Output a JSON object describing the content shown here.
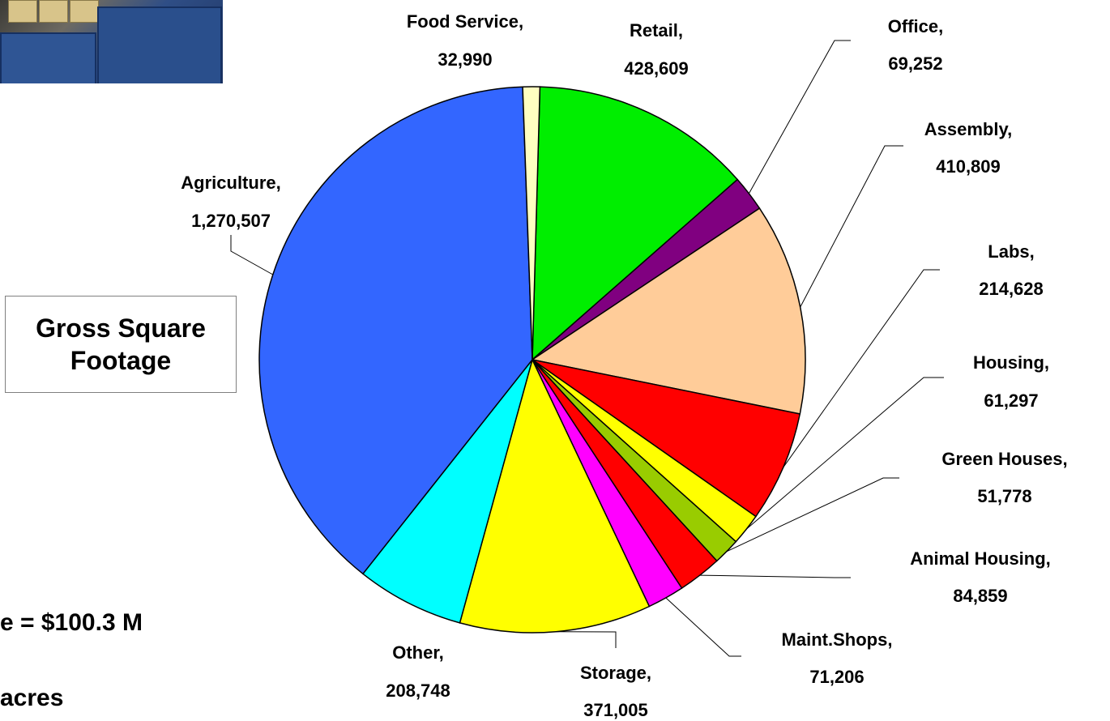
{
  "chart_data": {
    "type": "pie",
    "title": "",
    "slices": [
      {
        "label": "Retail,",
        "value": "428,609",
        "amount": 428609,
        "color": "#00ee00"
      },
      {
        "label": "Office,",
        "value": "69,252",
        "amount": 69252,
        "color": "#800080"
      },
      {
        "label": "Assembly,",
        "value": "410,809",
        "amount": 410809,
        "color": "#ffcc99"
      },
      {
        "label": "Labs,",
        "value": "214,628",
        "amount": 214628,
        "color": "#ff0000"
      },
      {
        "label": "Housing,",
        "value": "61,297",
        "amount": 61297,
        "color": "#ffff00"
      },
      {
        "label": "Green Houses,",
        "value": "51,778",
        "amount": 51778,
        "color": "#99cc00"
      },
      {
        "label": "Animal Housing,",
        "value": "84,859",
        "amount": 84859,
        "color": "#ff0000"
      },
      {
        "label": "Maint.Shops,",
        "value": "71,206",
        "amount": 71206,
        "color": "#ff00ff"
      },
      {
        "label": "Storage,",
        "value": "371,005",
        "amount": 371005,
        "color": "#ffff00"
      },
      {
        "label": "Other,",
        "value": "208,748",
        "amount": 208748,
        "color": "#00ffff"
      },
      {
        "label": "Agriculture,",
        "value": "1,270,507",
        "amount": 1270507,
        "color": "#3366ff"
      },
      {
        "label": "Food Service,",
        "value": "32,990",
        "amount": 32990,
        "color": "#ffffc0"
      }
    ]
  },
  "side_box": {
    "text": "Gross Square\nFootage"
  },
  "footnotes": {
    "replacement": "e = $100.3 M",
    "acres": "acres"
  }
}
